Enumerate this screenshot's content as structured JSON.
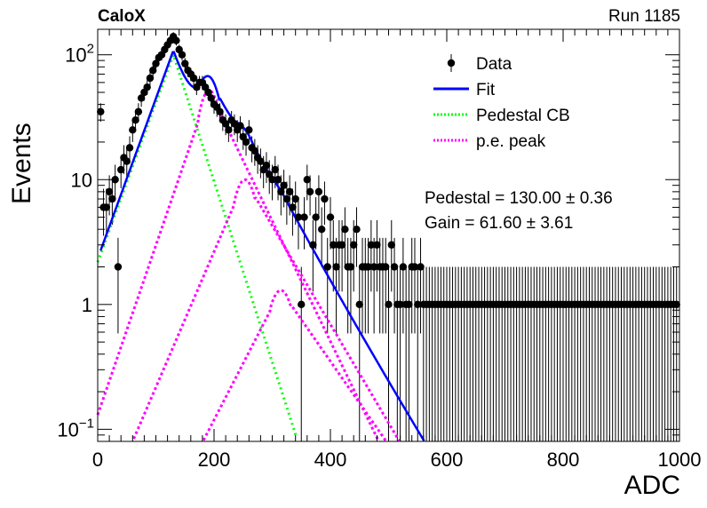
{
  "header": {
    "left": "CaloX",
    "right": "Run 1185"
  },
  "fit_results": {
    "pedestal": "Pedestal = 130.00 ± 0.36",
    "gain": "Gain = 61.60 ± 3.61"
  },
  "chart_data": {
    "type": "scatter",
    "xlabel": "ADC",
    "ylabel": "Events",
    "xlim": [
      0,
      1000
    ],
    "ylim": [
      0.08,
      160
    ],
    "yscale": "log",
    "x_ticks": [
      "0",
      "200",
      "400",
      "600",
      "800",
      "1000"
    ],
    "y_ticks": [
      "10^-1",
      "1",
      "10",
      "10^2"
    ],
    "legend": {
      "placement": "top-right",
      "entries": [
        {
          "name": "Data",
          "style": "marker"
        },
        {
          "name": "Fit",
          "style": "line",
          "color": "#0000ff"
        },
        {
          "name": "Pedestal CB",
          "style": "dotted",
          "color": "#00ff00"
        },
        {
          "name": "p.e. peak",
          "style": "dotted",
          "color": "#ff00ff"
        }
      ]
    },
    "data_series": {
      "name": "Data",
      "x": [
        5,
        10,
        15,
        20,
        25,
        30,
        35,
        40,
        45,
        50,
        55,
        60,
        65,
        70,
        75,
        80,
        85,
        90,
        95,
        100,
        105,
        110,
        115,
        120,
        125,
        130,
        135,
        140,
        145,
        150,
        155,
        160,
        165,
        170,
        175,
        180,
        185,
        190,
        195,
        200,
        205,
        210,
        215,
        220,
        225,
        230,
        235,
        240,
        245,
        250,
        255,
        260,
        265,
        270,
        275,
        280,
        285,
        290,
        295,
        300,
        305,
        310,
        315,
        320,
        325,
        330,
        335,
        340,
        345,
        350,
        355,
        360,
        365,
        370,
        375,
        380,
        385,
        390,
        395,
        400,
        405,
        410,
        415,
        420,
        425,
        430,
        435,
        440,
        445,
        450,
        455,
        460,
        465,
        470,
        475,
        480,
        485,
        490,
        495,
        500,
        505,
        510,
        515,
        520,
        525,
        530,
        535,
        540,
        545,
        550,
        555,
        560,
        565,
        570,
        575,
        580,
        585,
        590,
        595,
        600,
        605,
        610,
        615,
        620,
        625,
        630,
        635,
        640,
        645,
        650,
        655,
        660,
        665,
        670,
        675,
        680,
        685,
        690,
        695,
        700,
        705,
        710,
        715,
        720,
        725,
        730,
        735,
        740,
        745,
        750,
        755,
        760,
        765,
        770,
        775,
        780,
        785,
        790,
        795,
        800,
        805,
        810,
        815,
        820,
        825,
        830,
        835,
        840,
        845,
        850,
        855,
        860,
        865,
        870,
        875,
        880,
        885,
        890,
        895,
        900,
        905,
        910,
        915,
        920,
        925,
        930,
        935,
        940,
        945,
        950,
        955,
        960,
        965,
        970,
        975,
        980,
        985,
        990,
        995
      ],
      "y": [
        35,
        6,
        6,
        8,
        7,
        10,
        2,
        12,
        15,
        14,
        18,
        25,
        30,
        35,
        45,
        50,
        55,
        65,
        75,
        85,
        95,
        100,
        110,
        120,
        130,
        140,
        130,
        110,
        100,
        85,
        75,
        70,
        65,
        55,
        60,
        60,
        55,
        50,
        45,
        40,
        38,
        35,
        30,
        28,
        25,
        30,
        28,
        25,
        27,
        22,
        20,
        25,
        18,
        17,
        15,
        14,
        12,
        13,
        11,
        10,
        12,
        10,
        8,
        9,
        7,
        8,
        6,
        7,
        5,
        1,
        5,
        10,
        8,
        3,
        5,
        8,
        4,
        7,
        2,
        5,
        3,
        2,
        3,
        3,
        4,
        2,
        2,
        3,
        4,
        1,
        2,
        2,
        2,
        3,
        2,
        3,
        2,
        2,
        2,
        1,
        3,
        2,
        1,
        1,
        2,
        1,
        1,
        2,
        2,
        1,
        2,
        1,
        1,
        1,
        1,
        1,
        1,
        1,
        1,
        1,
        1,
        1,
        1,
        1,
        1,
        1,
        1,
        1,
        1,
        1,
        1,
        1,
        1,
        1,
        1,
        1,
        1,
        1,
        1,
        1,
        1,
        1,
        1,
        1,
        1,
        1,
        1,
        1,
        1,
        1,
        1,
        1,
        1,
        1,
        1,
        1,
        1,
        1,
        1,
        1,
        1,
        1,
        1,
        1,
        1,
        1,
        1,
        1,
        1,
        1,
        1,
        1,
        1,
        1,
        1,
        1,
        1,
        1,
        1,
        1,
        1,
        1,
        1,
        1,
        1,
        1,
        1,
        1,
        1,
        1,
        1,
        1,
        1,
        1,
        1,
        1,
        1,
        1,
        1
      ]
    },
    "fit_parameters": {
      "pedestal": 130.0,
      "gain": 61.6
    }
  }
}
